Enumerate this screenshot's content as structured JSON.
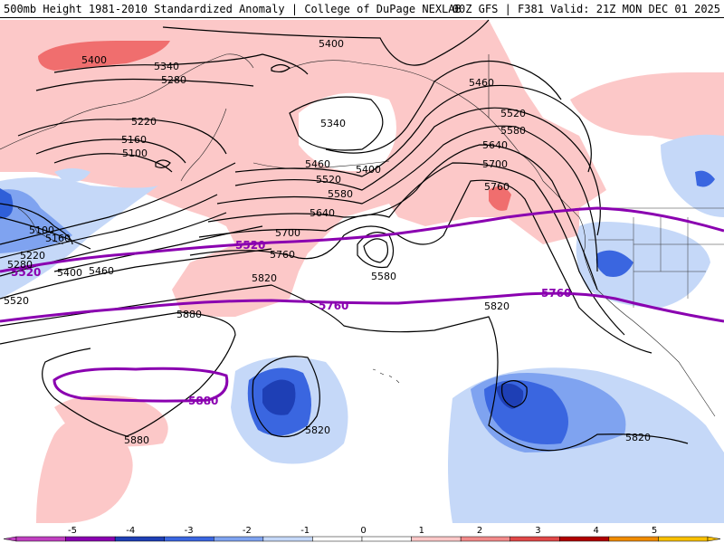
{
  "header": {
    "title_left": "500mb Height 1981-2010 Standardized Anomaly | College of DuPage NEXLAB",
    "title_right": "00Z GFS | F381 Valid: 21Z MON DEC 01 2025"
  },
  "contour_labels": {
    "l5400_nw": "5400",
    "l5400_top": "5400",
    "l5340_a": "5340",
    "l5280_a": "5280",
    "l5220_a": "5220",
    "l5160_a": "5160",
    "l5100_a": "5100",
    "l5340_ak": "5340",
    "l5400_ak": "5400",
    "l5460_a": "5460",
    "l5520_a": "5520",
    "l5580_a": "5580",
    "l5640_a": "5640",
    "l5700_a": "5700",
    "l5760_a": "5760",
    "l5460_ne": "5460",
    "l5520_ne": "5520",
    "l5580_ne": "5580",
    "l5640_ne": "5640",
    "l5700_ne": "5700",
    "l5760_ne": "5760",
    "l5100_w": "5100",
    "l5160_w": "5160",
    "l5220_w": "5220",
    "l5280_w": "5280",
    "l5400_w": "5400",
    "l5460_w": "5460",
    "l5520_w": "5520",
    "l5580_low": "5580",
    "l5820_a": "5820",
    "l5820_c": "5820",
    "l5880_a": "5880",
    "l5880_b": "5880",
    "l5820_low": "5820",
    "l5820_se": "5820"
  },
  "purple_labels": {
    "p5520_w": "5520",
    "p5520_c": "5520",
    "p5760_c": "5760",
    "p5760_e": "5760",
    "p5880": "5880"
  },
  "colorbar": {
    "ticks": [
      "-5",
      "-4",
      "-3",
      "-2",
      "-1",
      "0",
      "1",
      "2",
      "3",
      "4",
      "5"
    ],
    "colors": [
      "#c040c0",
      "#8a00b0",
      "#1e3fb5",
      "#3a66e0",
      "#7fa3f0",
      "#c5d8f8",
      "#ffffff",
      "#ffffff",
      "#fcc8c8",
      "#f28a8a",
      "#e04848",
      "#b00000",
      "#f08c00",
      "#f8c000"
    ]
  },
  "colors": {
    "purple_contour": "#8a00b0",
    "pink_light": "#fcc8c8",
    "pink_mid": "#f06e6e",
    "blue_light": "#c5d8f8",
    "blue_mid": "#7fa3f0",
    "blue_dark": "#2f5fd8",
    "blue_darker": "#1e3fb5"
  }
}
